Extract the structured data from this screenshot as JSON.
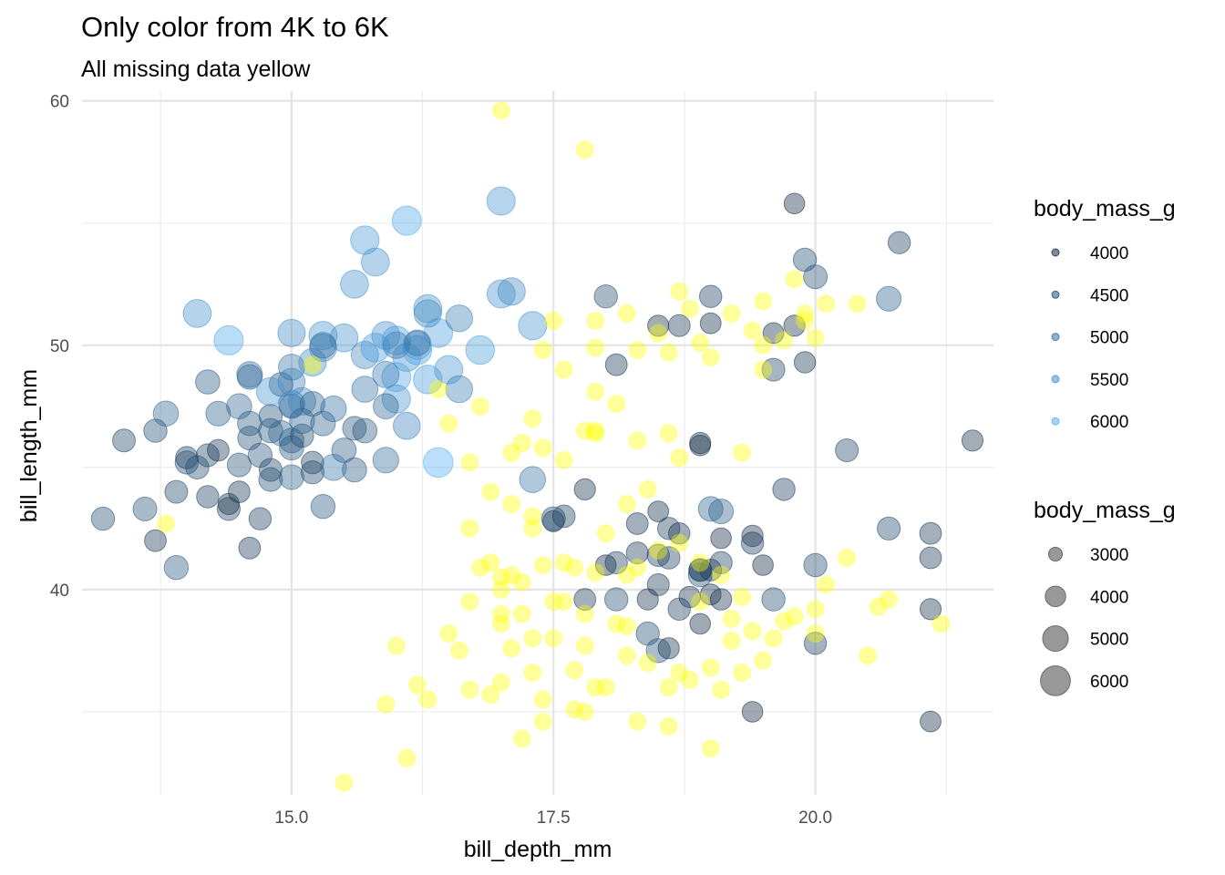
{
  "chart_data": {
    "type": "scatter",
    "title": "Only color from 4K to 6K",
    "subtitle": "All missing data yellow",
    "xlabel": "bill_depth_mm",
    "ylabel": "bill_length_mm",
    "xlim": [
      13.0,
      21.7
    ],
    "ylim": [
      31.6,
      60.4
    ],
    "x_ticks": [
      15.0,
      17.5,
      20.0
    ],
    "x_tick_labels": [
      "15.0",
      "17.5",
      "20.0"
    ],
    "y_ticks": [
      40,
      50,
      60
    ],
    "y_tick_labels": [
      "40",
      "50",
      "60"
    ],
    "grid": true,
    "color_scale": {
      "title": "body_mass_g",
      "limits": [
        4000,
        6000
      ],
      "low_color": "#132B43",
      "high_color": "#56B1F7",
      "na_color": "#ffff00",
      "alpha": 0.4,
      "breaks": [
        4000,
        4500,
        5000,
        5500,
        6000
      ],
      "labels": [
        "4000",
        "4500",
        "5000",
        "5500",
        "6000"
      ]
    },
    "size_scale": {
      "title": "body_mass_g",
      "breaks": [
        3000,
        4000,
        5000,
        6000
      ],
      "labels": [
        "3000",
        "4000",
        "5000",
        "6000"
      ],
      "mass_range": [
        2700,
        6300
      ]
    },
    "legend_position": "right",
    "points": [
      [
        13.2,
        42.9,
        4500
      ],
      [
        13.4,
        46.1,
        4400
      ],
      [
        13.6,
        43.3,
        4600
      ],
      [
        13.7,
        46.5,
        4500
      ],
      [
        13.7,
        42.0,
        4200
      ],
      [
        13.9,
        44.0,
        4400
      ],
      [
        14.0,
        45.4,
        4300
      ],
      [
        14.0,
        45.2,
        4500
      ],
      [
        13.9,
        40.9,
        4650
      ],
      [
        13.8,
        47.2,
        4900
      ],
      [
        14.1,
        45.0,
        4500
      ],
      [
        14.2,
        45.5,
        4400
      ],
      [
        14.2,
        43.8,
        4300
      ],
      [
        14.3,
        45.7,
        4200
      ],
      [
        14.4,
        43.3,
        4450
      ],
      [
        14.5,
        47.5,
        4900
      ],
      [
        14.6,
        46.2,
        4600
      ],
      [
        14.6,
        48.7,
        4800
      ],
      [
        14.4,
        43.5,
        4100
      ],
      [
        14.8,
        47.1,
        4500
      ],
      [
        14.5,
        44.0,
        4200
      ],
      [
        14.6,
        46.8,
        4700
      ],
      [
        14.7,
        45.5,
        4650
      ],
      [
        14.7,
        42.9,
        4300
      ],
      [
        14.8,
        46.5,
        4700
      ],
      [
        14.9,
        46.4,
        4900
      ],
      [
        14.5,
        45.1,
        4600
      ],
      [
        14.8,
        44.9,
        4400
      ],
      [
        14.9,
        48.4,
        4600
      ],
      [
        15.0,
        46.1,
        4800
      ],
      [
        15.0,
        47.5,
        4700
      ],
      [
        15.1,
        46.3,
        4500
      ],
      [
        15.2,
        45.2,
        4350
      ],
      [
        15.2,
        44.8,
        4450
      ],
      [
        14.6,
        41.7,
        4200
      ],
      [
        14.8,
        44.5,
        4550
      ],
      [
        15.0,
        45.8,
        4700
      ],
      [
        15.3,
        46.8,
        4800
      ],
      [
        15.0,
        44.6,
        4800
      ],
      [
        15.3,
        43.4,
        4650
      ],
      [
        15.5,
        45.7,
        4750
      ],
      [
        15.6,
        44.9,
        4700
      ],
      [
        15.6,
        46.6,
        4600
      ],
      [
        15.7,
        46.5,
        4700
      ],
      [
        15.0,
        49.1,
        5100
      ],
      [
        15.0,
        47.6,
        5200
      ],
      [
        15.0,
        48.5,
        5300
      ],
      [
        15.1,
        47.7,
        5400
      ],
      [
        15.4,
        47.4,
        5000
      ],
      [
        15.2,
        49.3,
        5450
      ],
      [
        15.3,
        49.9,
        5400
      ],
      [
        15.3,
        50.4,
        5600
      ],
      [
        15.5,
        50.3,
        5500
      ],
      [
        15.7,
        49.6,
        5400
      ],
      [
        15.8,
        49.9,
        5700
      ],
      [
        15.9,
        50.4,
        5500
      ],
      [
        16.0,
        50.2,
        5700
      ],
      [
        16.1,
        49.5,
        5500
      ],
      [
        16.2,
        49.8,
        5800
      ],
      [
        16.3,
        48.6,
        5700
      ],
      [
        16.0,
        48.7,
        5800
      ],
      [
        16.2,
        50.0,
        5650
      ],
      [
        16.4,
        50.5,
        5750
      ],
      [
        16.5,
        49.0,
        5600
      ],
      [
        16.0,
        47.8,
        5600
      ],
      [
        16.1,
        46.7,
        5300
      ],
      [
        15.9,
        48.8,
        5200
      ],
      [
        15.7,
        48.2,
        5100
      ],
      [
        15.9,
        45.3,
        5000
      ],
      [
        15.4,
        45.0,
        5100
      ],
      [
        14.1,
        51.3,
        5500
      ],
      [
        14.4,
        50.2,
        5850
      ],
      [
        14.8,
        48.1,
        5600
      ],
      [
        15.0,
        50.5,
        5400
      ],
      [
        15.1,
        46.9,
        4850
      ],
      [
        15.2,
        47.6,
        4800
      ],
      [
        15.6,
        52.5,
        5500
      ],
      [
        15.7,
        54.3,
        5650
      ],
      [
        15.8,
        53.4,
        5500
      ],
      [
        16.1,
        55.1,
        5850
      ],
      [
        16.3,
        51.5,
        5550
      ],
      [
        16.6,
        51.1,
        5250
      ],
      [
        16.3,
        51.3,
        5400
      ],
      [
        16.6,
        48.2,
        5250
      ],
      [
        16.4,
        45.2,
        5950
      ],
      [
        16.8,
        49.8,
        5700
      ],
      [
        17.0,
        55.9,
        5600
      ],
      [
        17.0,
        52.1,
        5550
      ],
      [
        17.1,
        52.2,
        5400
      ],
      [
        17.3,
        50.8,
        5600
      ],
      [
        17.3,
        44.5,
        5100
      ],
      [
        15.9,
        47.5,
        4900
      ],
      [
        16.0,
        50.0,
        5200
      ],
      [
        16.2,
        50.1,
        5000
      ],
      [
        15.3,
        50.0,
        5000
      ],
      [
        14.3,
        47.2,
        4800
      ],
      [
        14.6,
        48.8,
        5000
      ],
      [
        14.2,
        48.5,
        4700
      ],
      [
        13.8,
        42.7,
        null
      ],
      [
        15.2,
        49.2,
        null
      ],
      [
        18.0,
        52.0,
        4500
      ],
      [
        18.1,
        49.2,
        4200
      ],
      [
        18.5,
        50.8,
        4100
      ],
      [
        18.7,
        50.8,
        4250
      ],
      [
        19.0,
        52.0,
        4300
      ],
      [
        19.0,
        50.9,
        4050
      ],
      [
        19.6,
        50.5,
        4050
      ],
      [
        19.8,
        50.8,
        4100
      ],
      [
        19.9,
        53.5,
        4500
      ],
      [
        20.0,
        52.8,
        4600
      ],
      [
        19.8,
        55.8,
        4000
      ],
      [
        20.8,
        54.2,
        4300
      ],
      [
        20.7,
        51.9,
        4800
      ],
      [
        19.6,
        49.0,
        4400
      ],
      [
        19.9,
        49.3,
        4150
      ],
      [
        18.9,
        46.0,
        4100
      ],
      [
        18.9,
        45.9,
        4000
      ],
      [
        17.8,
        44.1,
        4100
      ],
      [
        17.5,
        42.8,
        4100
      ],
      [
        18.3,
        42.7,
        4200
      ],
      [
        18.5,
        43.2,
        4050
      ],
      [
        18.6,
        42.5,
        4300
      ],
      [
        18.7,
        42.3,
        4150
      ],
      [
        19.1,
        43.2,
        4775
      ],
      [
        19.1,
        42.1,
        4000
      ],
      [
        19.4,
        41.9,
        4300
      ],
      [
        19.4,
        42.2,
        4150
      ],
      [
        19.5,
        41.0,
        4000
      ],
      [
        19.7,
        44.1,
        4300
      ],
      [
        18.0,
        41.0,
        4000
      ],
      [
        18.1,
        41.1,
        4300
      ],
      [
        18.3,
        41.5,
        4250
      ],
      [
        18.5,
        41.4,
        4300
      ],
      [
        18.6,
        41.3,
        4350
      ],
      [
        18.9,
        40.8,
        4400
      ],
      [
        18.9,
        40.6,
        4600
      ],
      [
        19.0,
        40.8,
        4200
      ],
      [
        19.1,
        41.1,
        4300
      ],
      [
        18.5,
        40.2,
        4250
      ],
      [
        18.4,
        39.6,
        4100
      ],
      [
        18.8,
        39.7,
        4150
      ],
      [
        19.0,
        39.8,
        4050
      ],
      [
        19.1,
        39.6,
        4150
      ],
      [
        19.6,
        39.6,
        4500
      ],
      [
        17.5,
        42.9,
        4600
      ],
      [
        17.8,
        39.6,
        4200
      ],
      [
        18.1,
        39.6,
        4500
      ],
      [
        18.7,
        39.2,
        4300
      ],
      [
        18.4,
        38.2,
        4500
      ],
      [
        18.5,
        37.5,
        4650
      ],
      [
        18.6,
        37.6,
        4100
      ],
      [
        18.9,
        38.6,
        4000
      ],
      [
        18.9,
        40.8,
        4300
      ],
      [
        19.4,
        35.0,
        4000
      ],
      [
        20.0,
        37.8,
        4300
      ],
      [
        20.3,
        45.7,
        4400
      ],
      [
        20.7,
        42.5,
        4450
      ],
      [
        21.1,
        42.3,
        4200
      ],
      [
        21.1,
        41.3,
        4200
      ],
      [
        21.1,
        39.2,
        4100
      ],
      [
        21.1,
        34.6,
        4050
      ],
      [
        21.5,
        46.1,
        4100
      ],
      [
        20.0,
        41.0,
        4475
      ],
      [
        19.0,
        43.3,
        4800
      ],
      [
        17.6,
        43.0,
        4350
      ],
      [
        17.1,
        37.6,
        null
      ],
      [
        17.1,
        40.6,
        null
      ],
      [
        17.5,
        39.5,
        null
      ],
      [
        17.3,
        43.0,
        null
      ],
      [
        17.8,
        37.7,
        null
      ],
      [
        17.6,
        41.1,
        null
      ],
      [
        18.1,
        38.6,
        null
      ],
      [
        18.3,
        34.6,
        null
      ],
      [
        18.7,
        36.6,
        null
      ],
      [
        18.9,
        39.5,
        null
      ],
      [
        17.2,
        40.3,
        null
      ],
      [
        16.8,
        40.9,
        null
      ],
      [
        16.7,
        42.5,
        null
      ],
      [
        17.0,
        38.6,
        null
      ],
      [
        17.3,
        36.6,
        null
      ],
      [
        17.7,
        36.7,
        null
      ],
      [
        17.4,
        35.5,
        null
      ],
      [
        17.8,
        35.0,
        null
      ],
      [
        18.0,
        36.0,
        null
      ],
      [
        18.2,
        37.3,
        null
      ],
      [
        18.4,
        37.0,
        null
      ],
      [
        18.6,
        36.0,
        null
      ],
      [
        18.8,
        36.3,
        null
      ],
      [
        19.0,
        36.8,
        null
      ],
      [
        19.2,
        37.9,
        null
      ],
      [
        19.4,
        38.3,
        null
      ],
      [
        19.6,
        38.0,
        null
      ],
      [
        19.8,
        38.9,
        null
      ],
      [
        20.1,
        40.2,
        null
      ],
      [
        20.3,
        41.3,
        null
      ],
      [
        20.6,
        39.3,
        null
      ],
      [
        20.7,
        39.6,
        null
      ],
      [
        21.2,
        38.6,
        null
      ],
      [
        20.5,
        37.3,
        null
      ],
      [
        19.5,
        37.1,
        null
      ],
      [
        19.3,
        36.6,
        null
      ],
      [
        19.1,
        35.9,
        null
      ],
      [
        19.0,
        33.5,
        null
      ],
      [
        18.6,
        34.4,
        null
      ],
      [
        17.9,
        36.0,
        null
      ],
      [
        17.7,
        35.1,
        null
      ],
      [
        17.4,
        34.6,
        null
      ],
      [
        17.2,
        33.9,
        null
      ],
      [
        16.6,
        37.5,
        null
      ],
      [
        16.5,
        38.2,
        null
      ],
      [
        16.2,
        36.1,
        null
      ],
      [
        16.0,
        37.7,
        null
      ],
      [
        15.9,
        35.3,
        null
      ],
      [
        16.1,
        33.1,
        null
      ],
      [
        15.5,
        32.1,
        null
      ],
      [
        16.3,
        35.5,
        null
      ],
      [
        16.7,
        35.9,
        null
      ],
      [
        16.9,
        35.7,
        null
      ],
      [
        17.0,
        36.2,
        null
      ],
      [
        17.3,
        38.0,
        null
      ],
      [
        17.1,
        45.6,
        null
      ],
      [
        17.2,
        46.0,
        null
      ],
      [
        17.4,
        45.8,
        null
      ],
      [
        17.6,
        45.3,
        null
      ],
      [
        17.8,
        46.5,
        null
      ],
      [
        17.9,
        46.4,
        null
      ],
      [
        18.1,
        47.6,
        null
      ],
      [
        18.3,
        46.1,
        null
      ],
      [
        18.6,
        46.4,
        null
      ],
      [
        18.7,
        45.4,
        null
      ],
      [
        19.3,
        45.6,
        null
      ],
      [
        17.3,
        47.0,
        null
      ],
      [
        16.8,
        47.5,
        null
      ],
      [
        16.7,
        45.2,
        null
      ],
      [
        16.5,
        46.8,
        null
      ],
      [
        16.4,
        48.2,
        null
      ],
      [
        17.4,
        49.8,
        null
      ],
      [
        17.9,
        49.9,
        null
      ],
      [
        17.9,
        51.0,
        null
      ],
      [
        18.2,
        51.3,
        null
      ],
      [
        18.3,
        49.8,
        null
      ],
      [
        18.5,
        50.5,
        null
      ],
      [
        18.6,
        49.7,
        null
      ],
      [
        18.8,
        51.5,
        null
      ],
      [
        18.7,
        52.2,
        null
      ],
      [
        18.9,
        50.1,
        null
      ],
      [
        19.0,
        49.5,
        null
      ],
      [
        19.2,
        51.3,
        null
      ],
      [
        19.4,
        50.6,
        null
      ],
      [
        19.5,
        51.8,
        null
      ],
      [
        19.5,
        50.0,
        null
      ],
      [
        19.7,
        50.2,
        null
      ],
      [
        19.9,
        51.3,
        null
      ],
      [
        20.0,
        50.3,
        null
      ],
      [
        20.1,
        51.7,
        null
      ],
      [
        20.4,
        51.7,
        null
      ],
      [
        19.5,
        49.0,
        null
      ],
      [
        17.9,
        48.1,
        null
      ],
      [
        17.5,
        51.0,
        null
      ],
      [
        17.6,
        49.0,
        null
      ],
      [
        18.2,
        43.5,
        null
      ],
      [
        18.4,
        44.1,
        null
      ],
      [
        18.0,
        42.3,
        null
      ],
      [
        17.9,
        40.7,
        null
      ],
      [
        17.7,
        40.9,
        null
      ],
      [
        17.4,
        41.0,
        null
      ],
      [
        17.0,
        40.5,
        null
      ],
      [
        16.9,
        41.1,
        null
      ],
      [
        16.7,
        39.5,
        null
      ],
      [
        17.0,
        39.0,
        null
      ],
      [
        17.2,
        39.0,
        null
      ],
      [
        17.6,
        39.5,
        null
      ],
      [
        17.8,
        39.0,
        null
      ],
      [
        18.2,
        40.6,
        null
      ],
      [
        18.3,
        40.9,
        null
      ],
      [
        18.5,
        41.6,
        null
      ],
      [
        18.7,
        41.9,
        null
      ],
      [
        18.9,
        41.1,
        null
      ],
      [
        19.1,
        40.6,
        null
      ],
      [
        19.3,
        39.7,
        null
      ],
      [
        19.7,
        38.7,
        null
      ],
      [
        20.0,
        38.2,
        null
      ],
      [
        20.0,
        39.2,
        null
      ],
      [
        19.2,
        38.8,
        null
      ],
      [
        18.2,
        38.5,
        null
      ],
      [
        17.5,
        38.0,
        null
      ],
      [
        17.0,
        40.0,
        null
      ],
      [
        17.3,
        42.5,
        null
      ],
      [
        17.1,
        43.5,
        null
      ],
      [
        16.9,
        44.0,
        null
      ],
      [
        17.0,
        59.6,
        null
      ],
      [
        17.8,
        58.0,
        null
      ],
      [
        19.8,
        52.7,
        null
      ],
      [
        19.9,
        51.0,
        null
      ],
      [
        17.9,
        46.5,
        null
      ]
    ]
  }
}
